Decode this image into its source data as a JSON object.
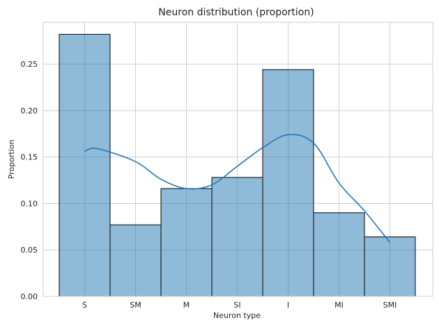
{
  "chart_data": {
    "type": "bar",
    "title": "Neuron distribution (proportion)",
    "xlabel": "Neuron type",
    "ylabel": "Proportion",
    "categories": [
      "S",
      "SM",
      "M",
      "SI",
      "I",
      "MI",
      "SMI"
    ],
    "values": [
      0.282,
      0.077,
      0.116,
      0.128,
      0.244,
      0.09,
      0.064
    ],
    "kde": [
      {
        "x": "S",
        "y": 0.156
      },
      {
        "x": "S",
        "y": 0.159,
        "offset": 0.25
      },
      {
        "x": "SM",
        "y": 0.145
      },
      {
        "x": "SM",
        "y": 0.126,
        "offset": 0.5
      },
      {
        "x": "M",
        "y": 0.116
      },
      {
        "x": "M",
        "y": 0.12,
        "offset": 0.5
      },
      {
        "x": "SI",
        "y": 0.14
      },
      {
        "x": "SI",
        "y": 0.16,
        "offset": 0.5
      },
      {
        "x": "I",
        "y": 0.174
      },
      {
        "x": "I",
        "y": 0.165,
        "offset": 0.5
      },
      {
        "x": "MI",
        "y": 0.122
      },
      {
        "x": "MI",
        "y": 0.092,
        "offset": 0.5
      },
      {
        "x": "SMI",
        "y": 0.058
      }
    ],
    "ylim": [
      0,
      0.295
    ],
    "yticks": [
      0.0,
      0.05,
      0.1,
      0.15,
      0.2,
      0.25
    ],
    "ytick_labels": [
      "0.00",
      "0.05",
      "0.10",
      "0.15",
      "0.20",
      "0.25"
    ],
    "grid": true,
    "bar_color": "#1f77b4",
    "line_color": "#1f77b4"
  }
}
